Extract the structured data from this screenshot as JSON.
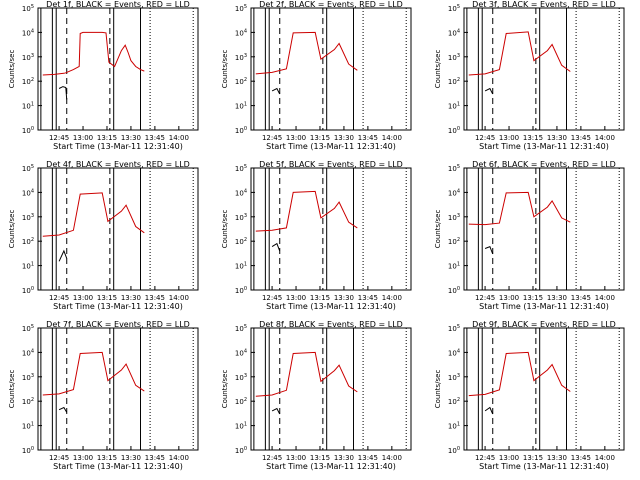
{
  "chart_data": [
    {
      "type": "line",
      "title": "Det 1f, BLACK = Events, RED = LLD",
      "start_time": "Start Time (13-Mar-11 12:31:40)",
      "ylabel": "Counts/sec",
      "xticks": [
        "12:45",
        "13:00",
        "13:15",
        "13:30",
        "13:45",
        "14:00"
      ],
      "yticks": [
        "10^0",
        "10^1",
        "10^2",
        "10^3",
        "10^4",
        "10^5"
      ],
      "yscale": "log",
      "ylim": [
        1,
        100000
      ],
      "series": [
        {
          "name": "Events",
          "color": "#000000",
          "points": [
            [
              12.75,
              50
            ],
            [
              12.79,
              60
            ],
            [
              12.82,
              55
            ],
            [
              12.83,
              18
            ]
          ]
        },
        {
          "name": "LLD",
          "color": "#cc0000",
          "points": [
            [
              12.58,
              180
            ],
            [
              12.7,
              190
            ],
            [
              12.8,
              210
            ],
            [
              12.82,
              220
            ],
            [
              12.9,
              300
            ],
            [
              12.96,
              400
            ],
            [
              12.97,
              9000
            ],
            [
              13.0,
              10000
            ],
            [
              13.2,
              10000
            ],
            [
              13.24,
              9500
            ],
            [
              13.27,
              600
            ],
            [
              13.33,
              400
            ],
            [
              13.4,
              1800
            ],
            [
              13.44,
              3000
            ],
            [
              13.47,
              1500
            ],
            [
              13.5,
              700
            ],
            [
              13.55,
              400
            ],
            [
              13.6,
              300
            ],
            [
              13.64,
              260
            ]
          ]
        }
      ]
    },
    {
      "type": "line",
      "title": "Det 2f, BLACK = Events, RED = LLD",
      "start_time": "Start Time (13-Mar-11 12:31:40)",
      "ylabel": "Counts/sec",
      "xticks": [
        "12:45",
        "13:00",
        "13:15",
        "13:30",
        "13:45",
        "14:00"
      ],
      "yticks": [
        "10^0",
        "10^1",
        "10^2",
        "10^3",
        "10^4",
        "10^5"
      ],
      "yscale": "log",
      "ylim": [
        1,
        100000
      ],
      "series": [
        {
          "name": "Events",
          "color": "#000000",
          "points": [
            [
              12.75,
              40
            ],
            [
              12.8,
              50
            ],
            [
              12.83,
              30
            ]
          ]
        },
        {
          "name": "LLD",
          "color": "#cc0000",
          "points": [
            [
              12.58,
              200
            ],
            [
              12.75,
              230
            ],
            [
              12.9,
              320
            ],
            [
              12.97,
              9500
            ],
            [
              13.2,
              10000
            ],
            [
              13.26,
              800
            ],
            [
              13.4,
              2000
            ],
            [
              13.45,
              3500
            ],
            [
              13.55,
              500
            ],
            [
              13.64,
              280
            ]
          ]
        }
      ]
    },
    {
      "type": "line",
      "title": "Det 3f, BLACK = Events, RED = LLD",
      "start_time": "Start Time (13-Mar-11 12:31:40)",
      "ylabel": "Counts/sec",
      "xticks": [
        "12:45",
        "13:00",
        "13:15",
        "13:30",
        "13:45",
        "14:00"
      ],
      "yticks": [
        "10^0",
        "10^1",
        "10^2",
        "10^3",
        "10^4",
        "10^5"
      ],
      "yscale": "log",
      "ylim": [
        1,
        100000
      ],
      "series": [
        {
          "name": "Events",
          "color": "#000000",
          "points": [
            [
              12.75,
              40
            ],
            [
              12.8,
              50
            ],
            [
              12.83,
              30
            ]
          ]
        },
        {
          "name": "LLD",
          "color": "#cc0000",
          "points": [
            [
              12.58,
              180
            ],
            [
              12.75,
              200
            ],
            [
              12.9,
              300
            ],
            [
              12.97,
              9000
            ],
            [
              13.2,
              10500
            ],
            [
              13.26,
              700
            ],
            [
              13.4,
              1800
            ],
            [
              13.45,
              3200
            ],
            [
              13.55,
              450
            ],
            [
              13.64,
              250
            ]
          ]
        }
      ]
    },
    {
      "type": "line",
      "title": "Det 4f, BLACK = Events, RED = LLD",
      "start_time": "Start Time (13-Mar-11 12:31:40)",
      "ylabel": "Counts/sec",
      "xticks": [
        "12:45",
        "13:00",
        "13:15",
        "13:30",
        "13:45",
        "14:00"
      ],
      "yticks": [
        "10^0",
        "10^1",
        "10^2",
        "10^3",
        "10^4",
        "10^5"
      ],
      "yscale": "log",
      "ylim": [
        1,
        100000
      ],
      "series": [
        {
          "name": "Events",
          "color": "#000000",
          "points": [
            [
              12.75,
              15
            ],
            [
              12.8,
              40
            ],
            [
              12.83,
              20
            ]
          ]
        },
        {
          "name": "LLD",
          "color": "#cc0000",
          "points": [
            [
              12.58,
              160
            ],
            [
              12.75,
              180
            ],
            [
              12.9,
              280
            ],
            [
              12.97,
              8500
            ],
            [
              13.2,
              9500
            ],
            [
              13.26,
              650
            ],
            [
              13.4,
              1700
            ],
            [
              13.45,
              3000
            ],
            [
              13.55,
              400
            ],
            [
              13.64,
              220
            ]
          ]
        }
      ]
    },
    {
      "type": "line",
      "title": "Det 5f, BLACK = Events, RED = LLD",
      "start_time": "Start Time (13-Mar-11 12:31:40)",
      "ylabel": "Counts/sec",
      "xticks": [
        "12:45",
        "13:00",
        "13:15",
        "13:30",
        "13:45",
        "14:00"
      ],
      "yticks": [
        "10^0",
        "10^1",
        "10^2",
        "10^3",
        "10^4",
        "10^5"
      ],
      "yscale": "log",
      "ylim": [
        1,
        100000
      ],
      "series": [
        {
          "name": "Events",
          "color": "#000000",
          "points": [
            [
              12.75,
              60
            ],
            [
              12.8,
              80
            ],
            [
              12.83,
              40
            ]
          ]
        },
        {
          "name": "LLD",
          "color": "#cc0000",
          "points": [
            [
              12.58,
              260
            ],
            [
              12.75,
              280
            ],
            [
              12.9,
              350
            ],
            [
              12.97,
              10000
            ],
            [
              13.2,
              11000
            ],
            [
              13.26,
              900
            ],
            [
              13.4,
              2200
            ],
            [
              13.45,
              4000
            ],
            [
              13.55,
              600
            ],
            [
              13.64,
              350
            ]
          ]
        }
      ]
    },
    {
      "type": "line",
      "title": "Det 6f, BLACK = Events, RED = LLD",
      "start_time": "Start Time (13-Mar-11 12:31:40)",
      "ylabel": "Counts/sec",
      "xticks": [
        "12:45",
        "13:00",
        "13:15",
        "13:30",
        "13:45",
        "14:00"
      ],
      "yticks": [
        "10^0",
        "10^1",
        "10^2",
        "10^3",
        "10^4",
        "10^5"
      ],
      "yscale": "log",
      "ylim": [
        1,
        100000
      ],
      "series": [
        {
          "name": "Events",
          "color": "#000000",
          "points": [
            [
              12.75,
              50
            ],
            [
              12.8,
              60
            ],
            [
              12.83,
              30
            ]
          ]
        },
        {
          "name": "LLD",
          "color": "#cc0000",
          "points": [
            [
              12.58,
              500
            ],
            [
              12.75,
              480
            ],
            [
              12.9,
              550
            ],
            [
              12.97,
              9500
            ],
            [
              13.2,
              10000
            ],
            [
              13.26,
              1000
            ],
            [
              13.4,
              2500
            ],
            [
              13.45,
              4500
            ],
            [
              13.55,
              900
            ],
            [
              13.64,
              600
            ]
          ]
        }
      ]
    },
    {
      "type": "line",
      "title": "Det 7f, BLACK = Events, RED = LLD",
      "start_time": "Start Time (13-Mar-11 12:31:40)",
      "ylabel": "Counts/sec",
      "xticks": [
        "12:45",
        "13:00",
        "13:15",
        "13:30",
        "13:45",
        "14:00"
      ],
      "yticks": [
        "10^0",
        "10^1",
        "10^2",
        "10^3",
        "10^4",
        "10^5"
      ],
      "yscale": "log",
      "ylim": [
        1,
        100000
      ],
      "series": [
        {
          "name": "Events",
          "color": "#000000",
          "points": [
            [
              12.75,
              45
            ],
            [
              12.8,
              55
            ],
            [
              12.83,
              35
            ]
          ]
        },
        {
          "name": "LLD",
          "color": "#cc0000",
          "points": [
            [
              12.58,
              180
            ],
            [
              12.75,
              200
            ],
            [
              12.9,
              300
            ],
            [
              12.97,
              9000
            ],
            [
              13.2,
              10000
            ],
            [
              13.26,
              700
            ],
            [
              13.4,
              1900
            ],
            [
              13.45,
              3300
            ],
            [
              13.55,
              450
            ],
            [
              13.64,
              260
            ]
          ]
        }
      ]
    },
    {
      "type": "line",
      "title": "Det 8f, BLACK = Events, RED = LLD",
      "start_time": "Start Time (13-Mar-11 12:31:40)",
      "ylabel": "Counts/sec",
      "xticks": [
        "12:45",
        "13:00",
        "13:15",
        "13:30",
        "13:45",
        "14:00"
      ],
      "yticks": [
        "10^0",
        "10^1",
        "10^2",
        "10^3",
        "10^4",
        "10^5"
      ],
      "yscale": "log",
      "ylim": [
        1,
        100000
      ],
      "series": [
        {
          "name": "Events",
          "color": "#000000",
          "points": [
            [
              12.75,
              40
            ],
            [
              12.8,
              50
            ],
            [
              12.83,
              30
            ]
          ]
        },
        {
          "name": "LLD",
          "color": "#cc0000",
          "points": [
            [
              12.58,
              160
            ],
            [
              12.75,
              180
            ],
            [
              12.9,
              280
            ],
            [
              12.97,
              9000
            ],
            [
              13.2,
              10000
            ],
            [
              13.26,
              650
            ],
            [
              13.4,
              1800
            ],
            [
              13.45,
              3000
            ],
            [
              13.55,
              420
            ],
            [
              13.64,
              240
            ]
          ]
        }
      ]
    },
    {
      "type": "line",
      "title": "Det 9f, BLACK = Events, RED = LLD",
      "start_time": "Start Time (13-Mar-11 12:31:40)",
      "ylabel": "Counts/sec",
      "xticks": [
        "12:45",
        "13:00",
        "13:15",
        "13:30",
        "13:45",
        "14:00"
      ],
      "yticks": [
        "10^0",
        "10^1",
        "10^2",
        "10^3",
        "10^4",
        "10^5"
      ],
      "yscale": "log",
      "ylim": [
        1,
        100000
      ],
      "series": [
        {
          "name": "Events",
          "color": "#000000",
          "points": [
            [
              12.75,
              40
            ],
            [
              12.8,
              55
            ],
            [
              12.83,
              30
            ]
          ]
        },
        {
          "name": "LLD",
          "color": "#cc0000",
          "points": [
            [
              12.58,
              170
            ],
            [
              12.75,
              190
            ],
            [
              12.9,
              290
            ],
            [
              12.97,
              9000
            ],
            [
              13.2,
              10000
            ],
            [
              13.26,
              700
            ],
            [
              13.4,
              1900
            ],
            [
              13.45,
              3200
            ],
            [
              13.55,
              450
            ],
            [
              13.64,
              250
            ]
          ]
        }
      ]
    }
  ]
}
